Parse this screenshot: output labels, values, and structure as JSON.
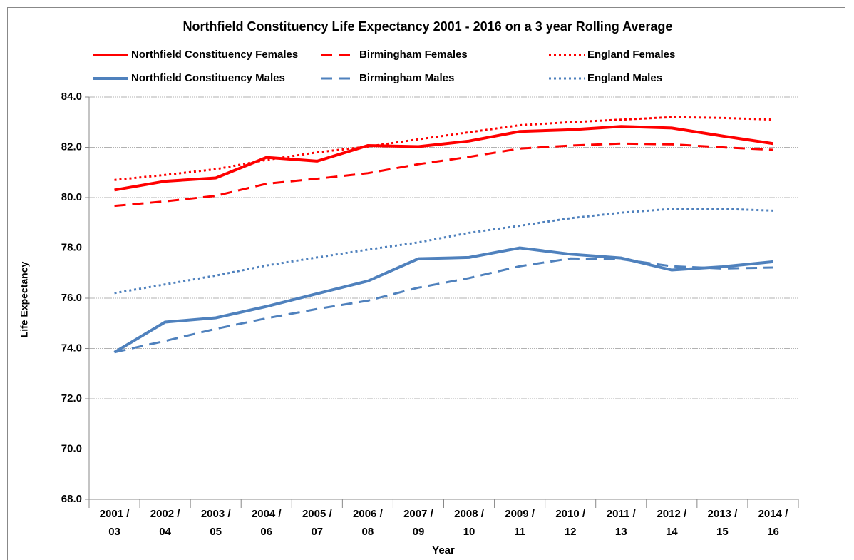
{
  "chart_data": {
    "type": "line",
    "title": "Northfield Constituency Life Expectancy 2001 - 2016 on a 3 year Rolling Average",
    "x_label": "Year",
    "y_label": "Life Expectancy",
    "categories": [
      "2001 / 03",
      "2002 / 04",
      "2003 / 05",
      "2004 / 06",
      "2005 / 07",
      "2006 / 08",
      "2007 / 09",
      "2008 / 10",
      "2009 / 11",
      "2010 / 12",
      "2011 / 13",
      "2012 / 14",
      "2013 / 15",
      "2014 / 16"
    ],
    "series": [
      {
        "name": "Northfield Constituency Females",
        "color": "#ff0000",
        "dash": "solid",
        "values": [
          80.3,
          80.65,
          80.78,
          81.6,
          81.45,
          82.07,
          82.03,
          82.25,
          82.63,
          82.7,
          82.83,
          82.77,
          82.45,
          82.15
        ]
      },
      {
        "name": "Birmingham Females",
        "color": "#ff0000",
        "dash": "dashed",
        "values": [
          79.67,
          79.85,
          80.07,
          80.55,
          80.75,
          80.97,
          81.33,
          81.62,
          81.95,
          82.07,
          82.15,
          82.12,
          82.0,
          81.9
        ]
      },
      {
        "name": "England Females",
        "color": "#ff0000",
        "dash": "dotted",
        "values": [
          80.7,
          80.9,
          81.13,
          81.5,
          81.8,
          82.03,
          82.32,
          82.6,
          82.88,
          83.0,
          83.1,
          83.2,
          83.17,
          83.1
        ]
      },
      {
        "name": "Northfield Constituency Males",
        "color": "#4f81bd",
        "dash": "solid",
        "values": [
          73.85,
          75.05,
          75.22,
          75.67,
          76.18,
          76.68,
          77.57,
          77.62,
          78.0,
          77.75,
          77.6,
          77.12,
          77.25,
          77.45
        ]
      },
      {
        "name": "Birmingham Males",
        "color": "#4f81bd",
        "dash": "dashed",
        "values": [
          73.85,
          74.3,
          74.78,
          75.2,
          75.57,
          75.9,
          76.42,
          76.8,
          77.27,
          77.58,
          77.55,
          77.27,
          77.18,
          77.22
        ]
      },
      {
        "name": "England Males",
        "color": "#4f81bd",
        "dash": "dotted",
        "values": [
          76.2,
          76.55,
          76.9,
          77.3,
          77.62,
          77.93,
          78.22,
          78.6,
          78.88,
          79.18,
          79.4,
          79.55,
          79.55,
          79.48
        ]
      }
    ],
    "ylim": [
      68,
      84
    ],
    "yticks": [
      {
        "value": 68,
        "label": "68.0"
      },
      {
        "value": 70,
        "label": "70.0"
      },
      {
        "value": 72,
        "label": "72.0"
      },
      {
        "value": 74,
        "label": "74.0"
      },
      {
        "value": 76,
        "label": "76.0"
      },
      {
        "value": 78,
        "label": "78.0"
      },
      {
        "value": 80,
        "label": "80.0"
      },
      {
        "value": 82,
        "label": "82.0"
      },
      {
        "value": 84,
        "label": "84.0"
      }
    ],
    "grid": true,
    "legend": "top"
  }
}
